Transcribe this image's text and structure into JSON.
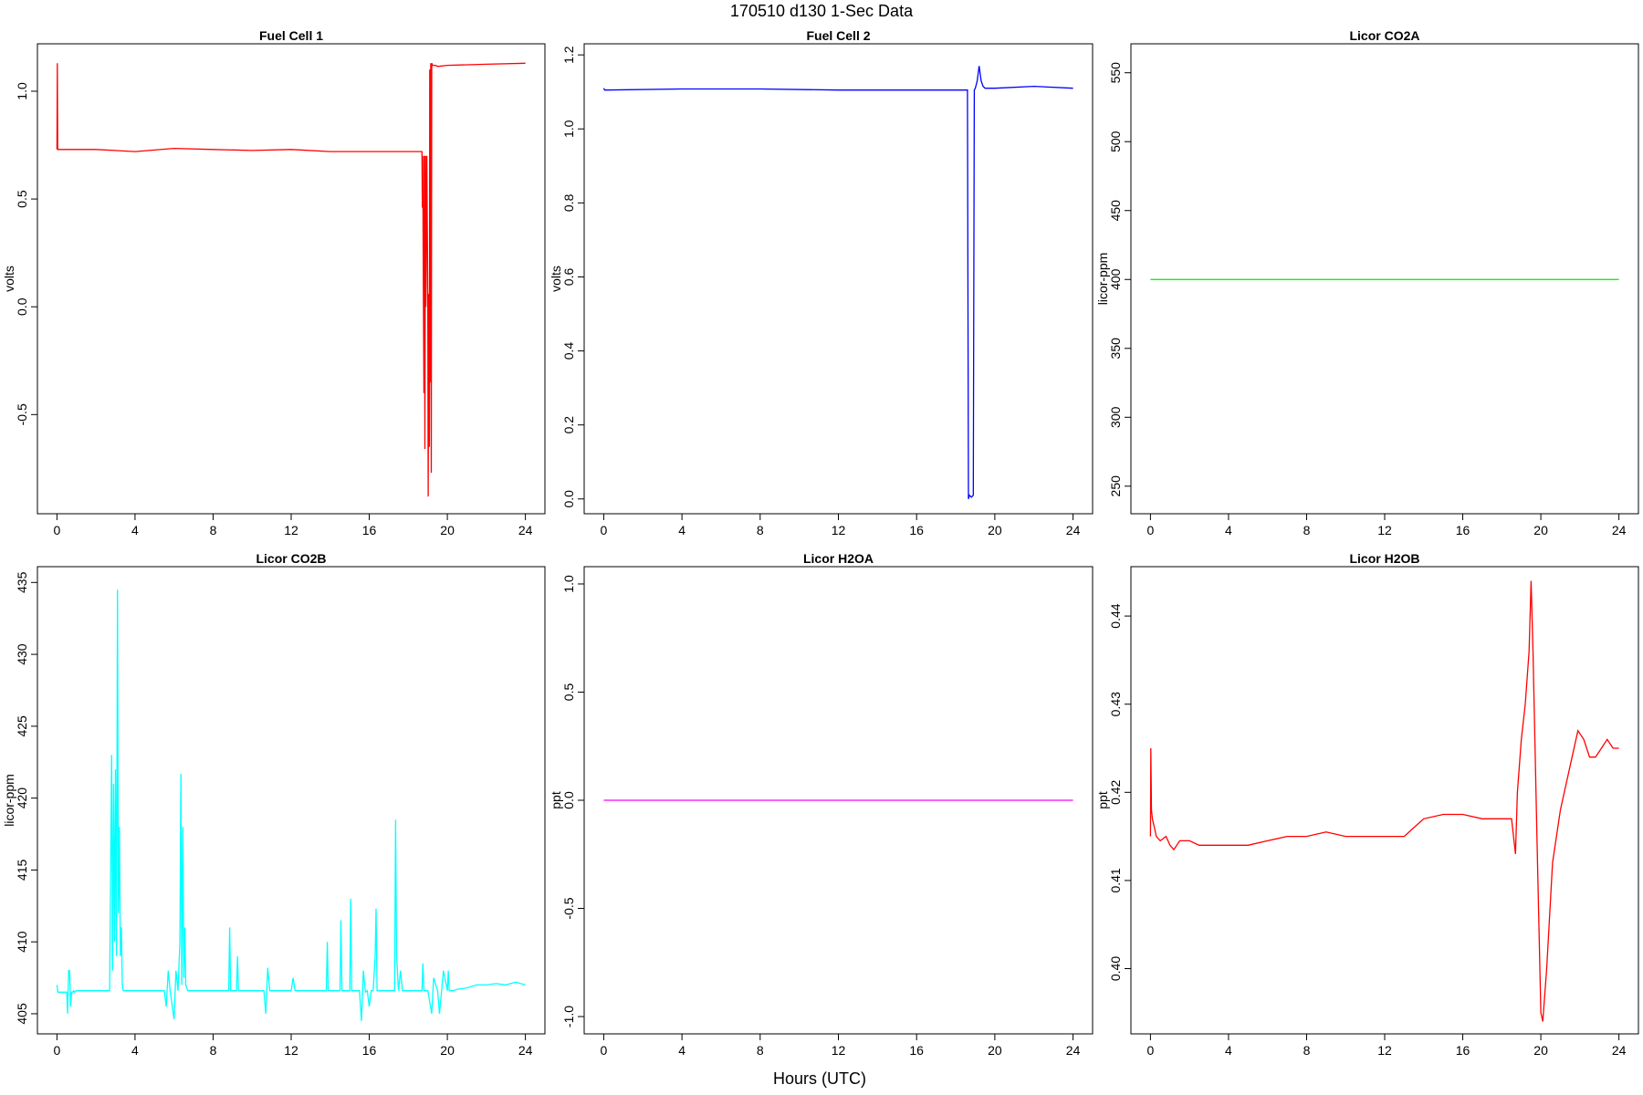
{
  "figure": {
    "title": "170510   d130   1-Sec Data",
    "xlabel": "Hours (UTC)"
  },
  "chart_data": [
    {
      "type": "line",
      "title": "Fuel Cell 1",
      "xlabel": "",
      "ylabel": "volts",
      "color": "#ff0000",
      "xlim": [
        -1,
        25
      ],
      "ylim": [
        -0.96,
        1.22
      ],
      "xticks": [
        0,
        4,
        8,
        12,
        16,
        20,
        24
      ],
      "yticks": [
        -0.5,
        0.0,
        0.5,
        1.0
      ],
      "ytick_labels": [
        "-0.5",
        "0.0",
        "0.5",
        "1.0"
      ],
      "series": [
        {
          "x": [
            0,
            0.02,
            0.04,
            0.06,
            2,
            4,
            6,
            8,
            10,
            12,
            14,
            16,
            18,
            18.7,
            18.72,
            18.74,
            18.8,
            18.82,
            18.85,
            18.88,
            18.9,
            18.95,
            19.0,
            19.02,
            19.05,
            19.08,
            19.1,
            19.12,
            19.15,
            19.18,
            19.2,
            19.25,
            19.3,
            19.4,
            19.5,
            20,
            22,
            24
          ],
          "y": [
            0.73,
            1.13,
            0.73,
            0.73,
            0.73,
            0.72,
            0.735,
            0.73,
            0.725,
            0.73,
            0.72,
            0.72,
            0.72,
            0.72,
            0.46,
            0.7,
            -0.4,
            0.7,
            -0.66,
            0.7,
            0.0,
            0.7,
            0.0,
            -0.88,
            0.06,
            -0.65,
            1.1,
            -0.35,
            1.13,
            -0.77,
            1.13,
            1.12,
            1.12,
            1.12,
            1.115,
            1.12,
            1.125,
            1.13
          ]
        }
      ]
    },
    {
      "type": "line",
      "title": "Fuel Cell 2",
      "xlabel": "",
      "ylabel": "volts",
      "color": "#0000ff",
      "xlim": [
        -1,
        25
      ],
      "ylim": [
        -0.04,
        1.23
      ],
      "xticks": [
        0,
        4,
        8,
        12,
        16,
        20,
        24
      ],
      "yticks": [
        0.0,
        0.2,
        0.4,
        0.6,
        0.8,
        1.0,
        1.2
      ],
      "ytick_labels": [
        "0.0",
        "0.2",
        "0.4",
        "0.6",
        "0.8",
        "1.0",
        "1.2"
      ],
      "series": [
        {
          "x": [
            0,
            0.05,
            0.1,
            4,
            8,
            12,
            16,
            18.6,
            18.65,
            18.7,
            18.8,
            18.9,
            18.95,
            19.0,
            19.1,
            19.2,
            19.3,
            19.4,
            19.5,
            19.7,
            20,
            22,
            24
          ],
          "y": [
            1.11,
            1.105,
            1.105,
            1.108,
            1.108,
            1.105,
            1.105,
            1.105,
            0.0,
            0.01,
            0.005,
            0.01,
            1.105,
            1.11,
            1.13,
            1.17,
            1.13,
            1.115,
            1.11,
            1.11,
            1.11,
            1.115,
            1.11
          ]
        }
      ]
    },
    {
      "type": "line",
      "title": "Licor CO2A",
      "xlabel": "",
      "ylabel": "licor-ppm",
      "color": "#00ff00",
      "xlim": [
        -1,
        25
      ],
      "ylim": [
        230,
        571
      ],
      "xticks": [
        0,
        4,
        8,
        12,
        16,
        20,
        24
      ],
      "yticks": [
        250,
        300,
        350,
        400,
        450,
        500,
        550
      ],
      "ytick_labels": [
        "250",
        "300",
        "350",
        "400",
        "450",
        "500",
        "550"
      ],
      "series": [
        {
          "x": [
            0,
            24
          ],
          "y": [
            400,
            400
          ]
        }
      ]
    },
    {
      "type": "line",
      "title": "Licor CO2B",
      "xlabel": "",
      "ylabel": "licor-ppm",
      "color": "#00ffff",
      "xlim": [
        -1,
        25
      ],
      "ylim": [
        403.6,
        436.1
      ],
      "xticks": [
        0,
        4,
        8,
        12,
        16,
        20,
        24
      ],
      "yticks": [
        405,
        410,
        415,
        420,
        425,
        430,
        435
      ],
      "ytick_labels": [
        "405",
        "410",
        "415",
        "420",
        "425",
        "430",
        "435"
      ],
      "series": [
        {
          "x": [
            0,
            0.05,
            0.1,
            0.5,
            0.55,
            0.6,
            0.65,
            0.7,
            0.75,
            0.8,
            0.85,
            0.9,
            1.0,
            1.5,
            2.0,
            2.5,
            2.7,
            2.8,
            2.85,
            2.9,
            2.95,
            3.0,
            3.05,
            3.1,
            3.15,
            3.2,
            3.25,
            3.3,
            3.35,
            3.4,
            3.5,
            4,
            5,
            5.5,
            5.6,
            5.7,
            5.8,
            6.0,
            6.1,
            6.2,
            6.3,
            6.35,
            6.4,
            6.45,
            6.5,
            6.55,
            6.6,
            6.7,
            6.8,
            7,
            8,
            8.8,
            8.85,
            8.9,
            9.2,
            9.25,
            9.3,
            10,
            10.6,
            10.7,
            10.8,
            10.9,
            11,
            12,
            12.1,
            12.2,
            13,
            13.8,
            13.85,
            13.9,
            14.5,
            14.55,
            14.6,
            15,
            15.05,
            15.1,
            15.5,
            15.6,
            15.7,
            15.8,
            15.9,
            16,
            16.1,
            16.2,
            16.3,
            16.35,
            16.4,
            16.5,
            16.8,
            17,
            17.2,
            17.3,
            17.35,
            17.4,
            17.5,
            17.6,
            17.7,
            17.8,
            18,
            18.5,
            18.7,
            18.75,
            18.8,
            19,
            19.2,
            19.3,
            19.5,
            19.6,
            19.8,
            20,
            20.05,
            20.1,
            20.3,
            20.5,
            21,
            21.5,
            22,
            22.5,
            23,
            23.5,
            24
          ],
          "y": [
            407,
            406.5,
            406.5,
            406.5,
            405,
            408,
            408,
            405.5,
            406.5,
            406.5,
            406.6,
            406.5,
            406.6,
            406.6,
            406.6,
            406.6,
            406.6,
            423,
            408,
            421,
            410,
            422,
            409,
            434.5,
            412,
            418,
            409,
            411,
            407,
            406.6,
            406.6,
            406.6,
            406.6,
            406.6,
            405.5,
            408,
            406.6,
            404.6,
            408,
            406.6,
            410,
            421.7,
            407,
            418,
            407.5,
            411,
            407,
            406.6,
            406.6,
            406.6,
            406.6,
            406.6,
            411,
            406.6,
            406.6,
            409,
            406.6,
            406.6,
            406.6,
            405,
            408.2,
            406.6,
            406.6,
            406.6,
            407.5,
            406.6,
            406.6,
            406.6,
            410,
            406.6,
            406.6,
            411.5,
            406.6,
            406.6,
            413,
            406.6,
            406.6,
            404.5,
            408,
            406.5,
            406.6,
            405.5,
            406.6,
            406.6,
            409,
            412.3,
            406.6,
            406.6,
            406.6,
            406.6,
            406.6,
            406.6,
            418.5,
            409,
            406.6,
            408,
            406.6,
            406.6,
            406.6,
            406.6,
            406.6,
            408.5,
            406.6,
            406.6,
            405,
            407.5,
            406.6,
            405,
            408,
            406.6,
            408,
            406.6,
            406.6,
            406.7,
            406.8,
            407,
            407,
            407.1,
            407,
            407.2,
            407
          ]
        }
      ]
    },
    {
      "type": "line",
      "title": "Licor H2OA",
      "xlabel": "",
      "ylabel": "ppt",
      "color": "#ff00ff",
      "xlim": [
        -1,
        25
      ],
      "ylim": [
        -1.08,
        1.08
      ],
      "xticks": [
        0,
        4,
        8,
        12,
        16,
        20,
        24
      ],
      "yticks": [
        -1.0,
        -0.5,
        0.0,
        0.5,
        1.0
      ],
      "ytick_labels": [
        "-1.0",
        "-0.5",
        "0.0",
        "0.5",
        "1.0"
      ],
      "series": [
        {
          "x": [
            0,
            24
          ],
          "y": [
            0,
            0
          ]
        }
      ]
    },
    {
      "type": "line",
      "title": "Licor H2OB",
      "xlabel": "",
      "ylabel": "ppt",
      "color": "#ff0000",
      "xlim": [
        -1,
        25
      ],
      "ylim": [
        0.3926,
        0.4456
      ],
      "xticks": [
        0,
        4,
        8,
        12,
        16,
        20,
        24
      ],
      "yticks": [
        0.4,
        0.41,
        0.42,
        0.43,
        0.44
      ],
      "ytick_labels": [
        "0.40",
        "0.41",
        "0.42",
        "0.43",
        "0.44"
      ],
      "series": [
        {
          "x": [
            0,
            0.02,
            0.05,
            0.1,
            0.2,
            0.3,
            0.5,
            0.8,
            1.0,
            1.2,
            1.5,
            2.0,
            2.5,
            3.0,
            4.0,
            5.0,
            6.0,
            7.0,
            8.0,
            9.0,
            10.0,
            11.0,
            12.0,
            13.0,
            13.5,
            14.0,
            15.0,
            16.0,
            17.0,
            18.0,
            18.5,
            18.7,
            18.8,
            19.0,
            19.2,
            19.4,
            19.5,
            19.6,
            19.8,
            20.0,
            20.1,
            20.3,
            20.6,
            21.0,
            21.3,
            21.6,
            21.9,
            22.2,
            22.5,
            22.8,
            23.1,
            23.4,
            23.7,
            24.0
          ],
          "y": [
            0.415,
            0.425,
            0.418,
            0.417,
            0.416,
            0.415,
            0.4145,
            0.415,
            0.414,
            0.4135,
            0.4145,
            0.4145,
            0.414,
            0.414,
            0.414,
            0.414,
            0.4145,
            0.415,
            0.415,
            0.4155,
            0.415,
            0.415,
            0.415,
            0.415,
            0.416,
            0.417,
            0.4175,
            0.4175,
            0.417,
            0.417,
            0.417,
            0.413,
            0.42,
            0.426,
            0.43,
            0.436,
            0.444,
            0.436,
            0.415,
            0.395,
            0.394,
            0.4,
            0.412,
            0.418,
            0.421,
            0.424,
            0.427,
            0.426,
            0.424,
            0.424,
            0.425,
            0.426,
            0.425,
            0.425
          ]
        }
      ]
    }
  ]
}
